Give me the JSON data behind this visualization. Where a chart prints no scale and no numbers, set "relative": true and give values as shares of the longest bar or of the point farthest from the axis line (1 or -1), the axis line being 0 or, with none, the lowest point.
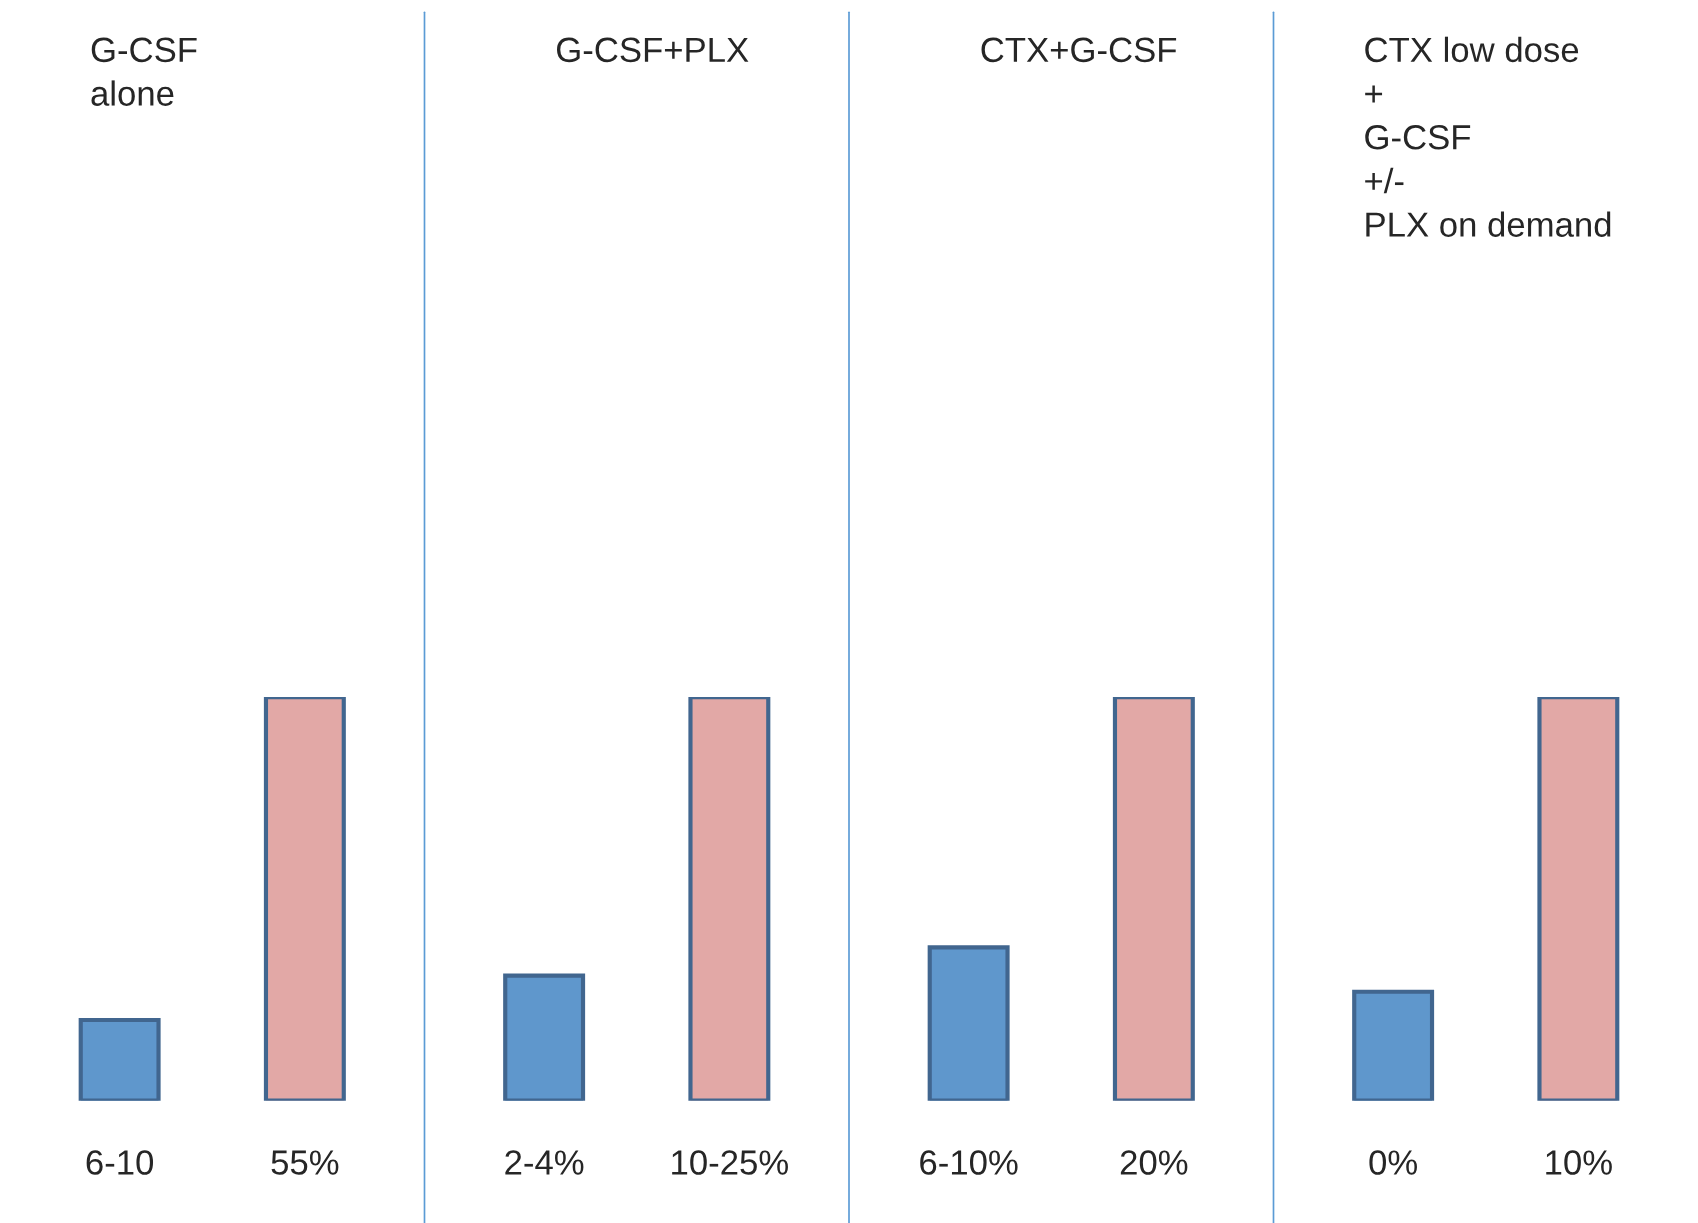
{
  "chart_data": [
    {
      "type": "bar",
      "title": "G-CSF\nalone",
      "categories": [
        "6-10",
        "55%"
      ],
      "relative": true,
      "values": [
        0.2,
        1
      ],
      "colors": [
        "#5f97cc",
        "#e2a8a6"
      ]
    },
    {
      "type": "bar",
      "title": "G-CSF+PLX",
      "categories": [
        "2-4%",
        "10-25%"
      ],
      "relative": true,
      "values": [
        0.31,
        1
      ],
      "colors": [
        "#5f97cc",
        "#e2a8a6"
      ]
    },
    {
      "type": "bar",
      "title": "CTX+G-CSF",
      "categories": [
        "6-10%",
        "20%"
      ],
      "relative": true,
      "values": [
        0.38,
        1
      ],
      "colors": [
        "#5f97cc",
        "#e2a8a6"
      ]
    },
    {
      "type": "bar",
      "title": "CTX low dose\n+\nG-CSF\n+/-\nPLX on demand",
      "categories": [
        "0%",
        "10%"
      ],
      "relative": true,
      "values": [
        0.27,
        1
      ],
      "colors": [
        "#5f97cc",
        "#e2a8a6"
      ]
    }
  ]
}
